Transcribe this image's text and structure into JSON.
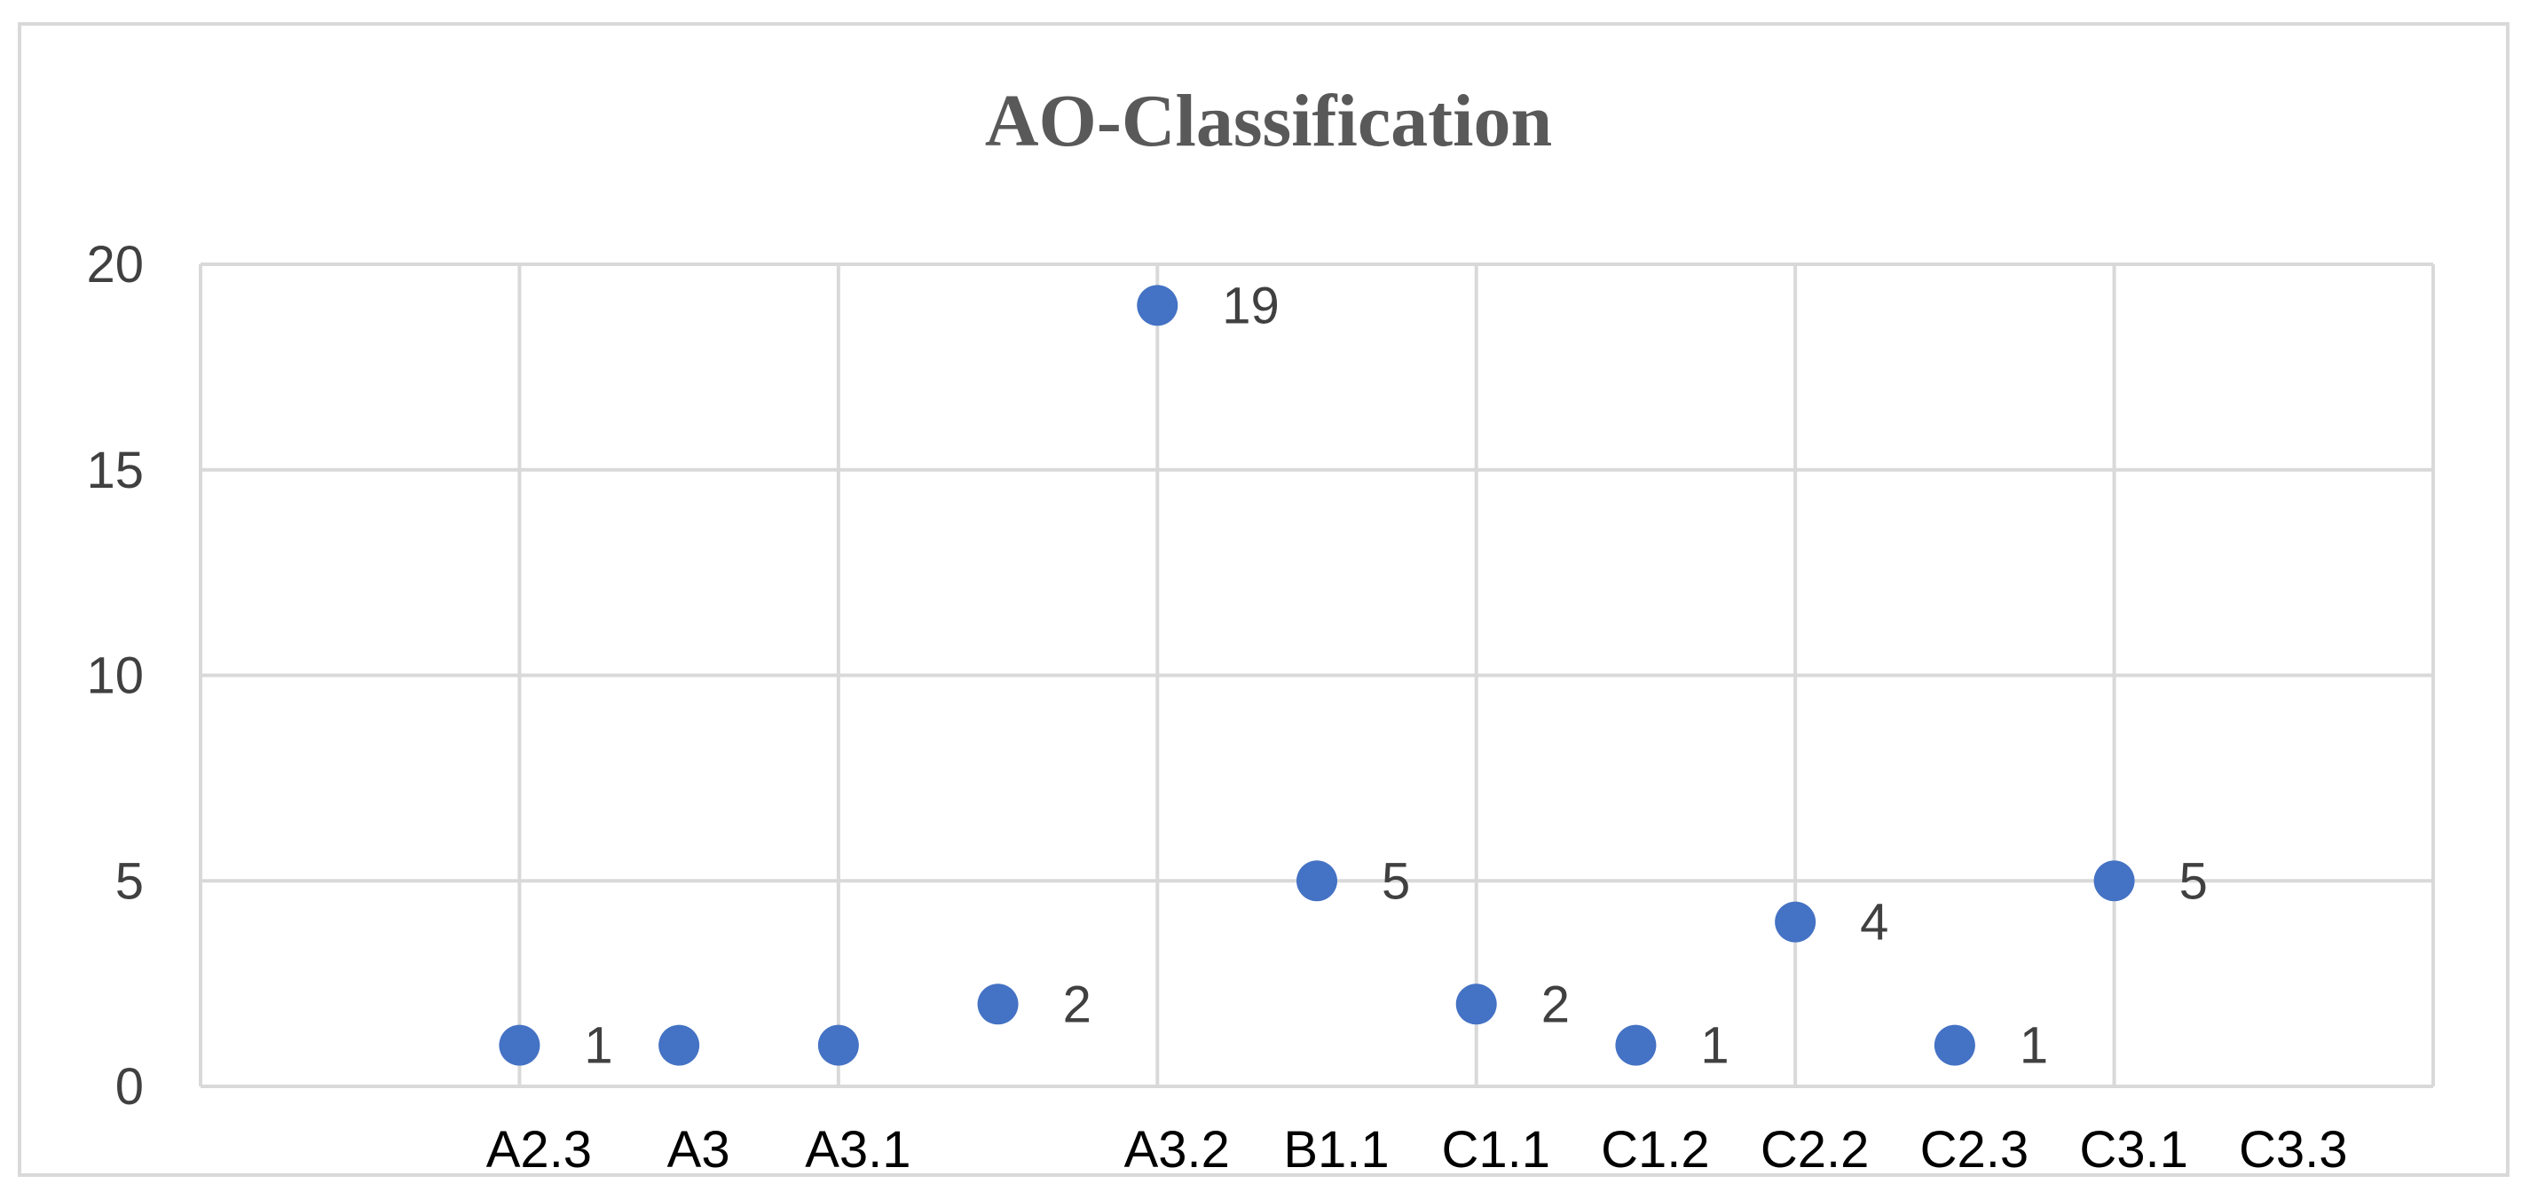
{
  "chart_data": {
    "type": "scatter",
    "title": "AO-Classification",
    "xlabel": "",
    "ylabel": "",
    "ylim": [
      0,
      20
    ],
    "y_ticks": [
      0,
      5,
      10,
      15,
      20
    ],
    "x_range": [
      0,
      14
    ],
    "x_tick_labels": [
      {
        "x": 2,
        "label": "A2.3"
      },
      {
        "x": 3,
        "label": "A3"
      },
      {
        "x": 4,
        "label": "A3.1"
      },
      {
        "x": 6,
        "label": "A3.2"
      },
      {
        "x": 7,
        "label": "B1.1"
      },
      {
        "x": 8,
        "label": "C1.1"
      },
      {
        "x": 9,
        "label": "C1.2"
      },
      {
        "x": 10,
        "label": "C2.2"
      },
      {
        "x": 11,
        "label": "C2.3"
      },
      {
        "x": 12,
        "label": "C3.1"
      },
      {
        "x": 13,
        "label": "C3.3"
      }
    ],
    "points": [
      {
        "x": 2,
        "y": 1,
        "label": "1"
      },
      {
        "x": 3,
        "y": 1,
        "label": ""
      },
      {
        "x": 4,
        "y": 1,
        "label": ""
      },
      {
        "x": 5,
        "y": 2,
        "label": "2"
      },
      {
        "x": 6,
        "y": 19,
        "label": "19"
      },
      {
        "x": 7,
        "y": 5,
        "label": "5"
      },
      {
        "x": 8,
        "y": 2,
        "label": "2"
      },
      {
        "x": 9,
        "y": 1,
        "label": "1"
      },
      {
        "x": 10,
        "y": 4,
        "label": "4"
      },
      {
        "x": 11,
        "y": 1,
        "label": "1"
      },
      {
        "x": 12,
        "y": 5,
        "label": "5"
      }
    ],
    "vertical_gridlines_at_x": [
      0,
      2,
      4,
      6,
      8,
      10,
      12,
      14
    ],
    "grid": true,
    "legend": "none",
    "colors": {
      "marker": "#4472c4",
      "grid": "#d9d9d9",
      "title": "#595959",
      "text": "#404040"
    }
  }
}
